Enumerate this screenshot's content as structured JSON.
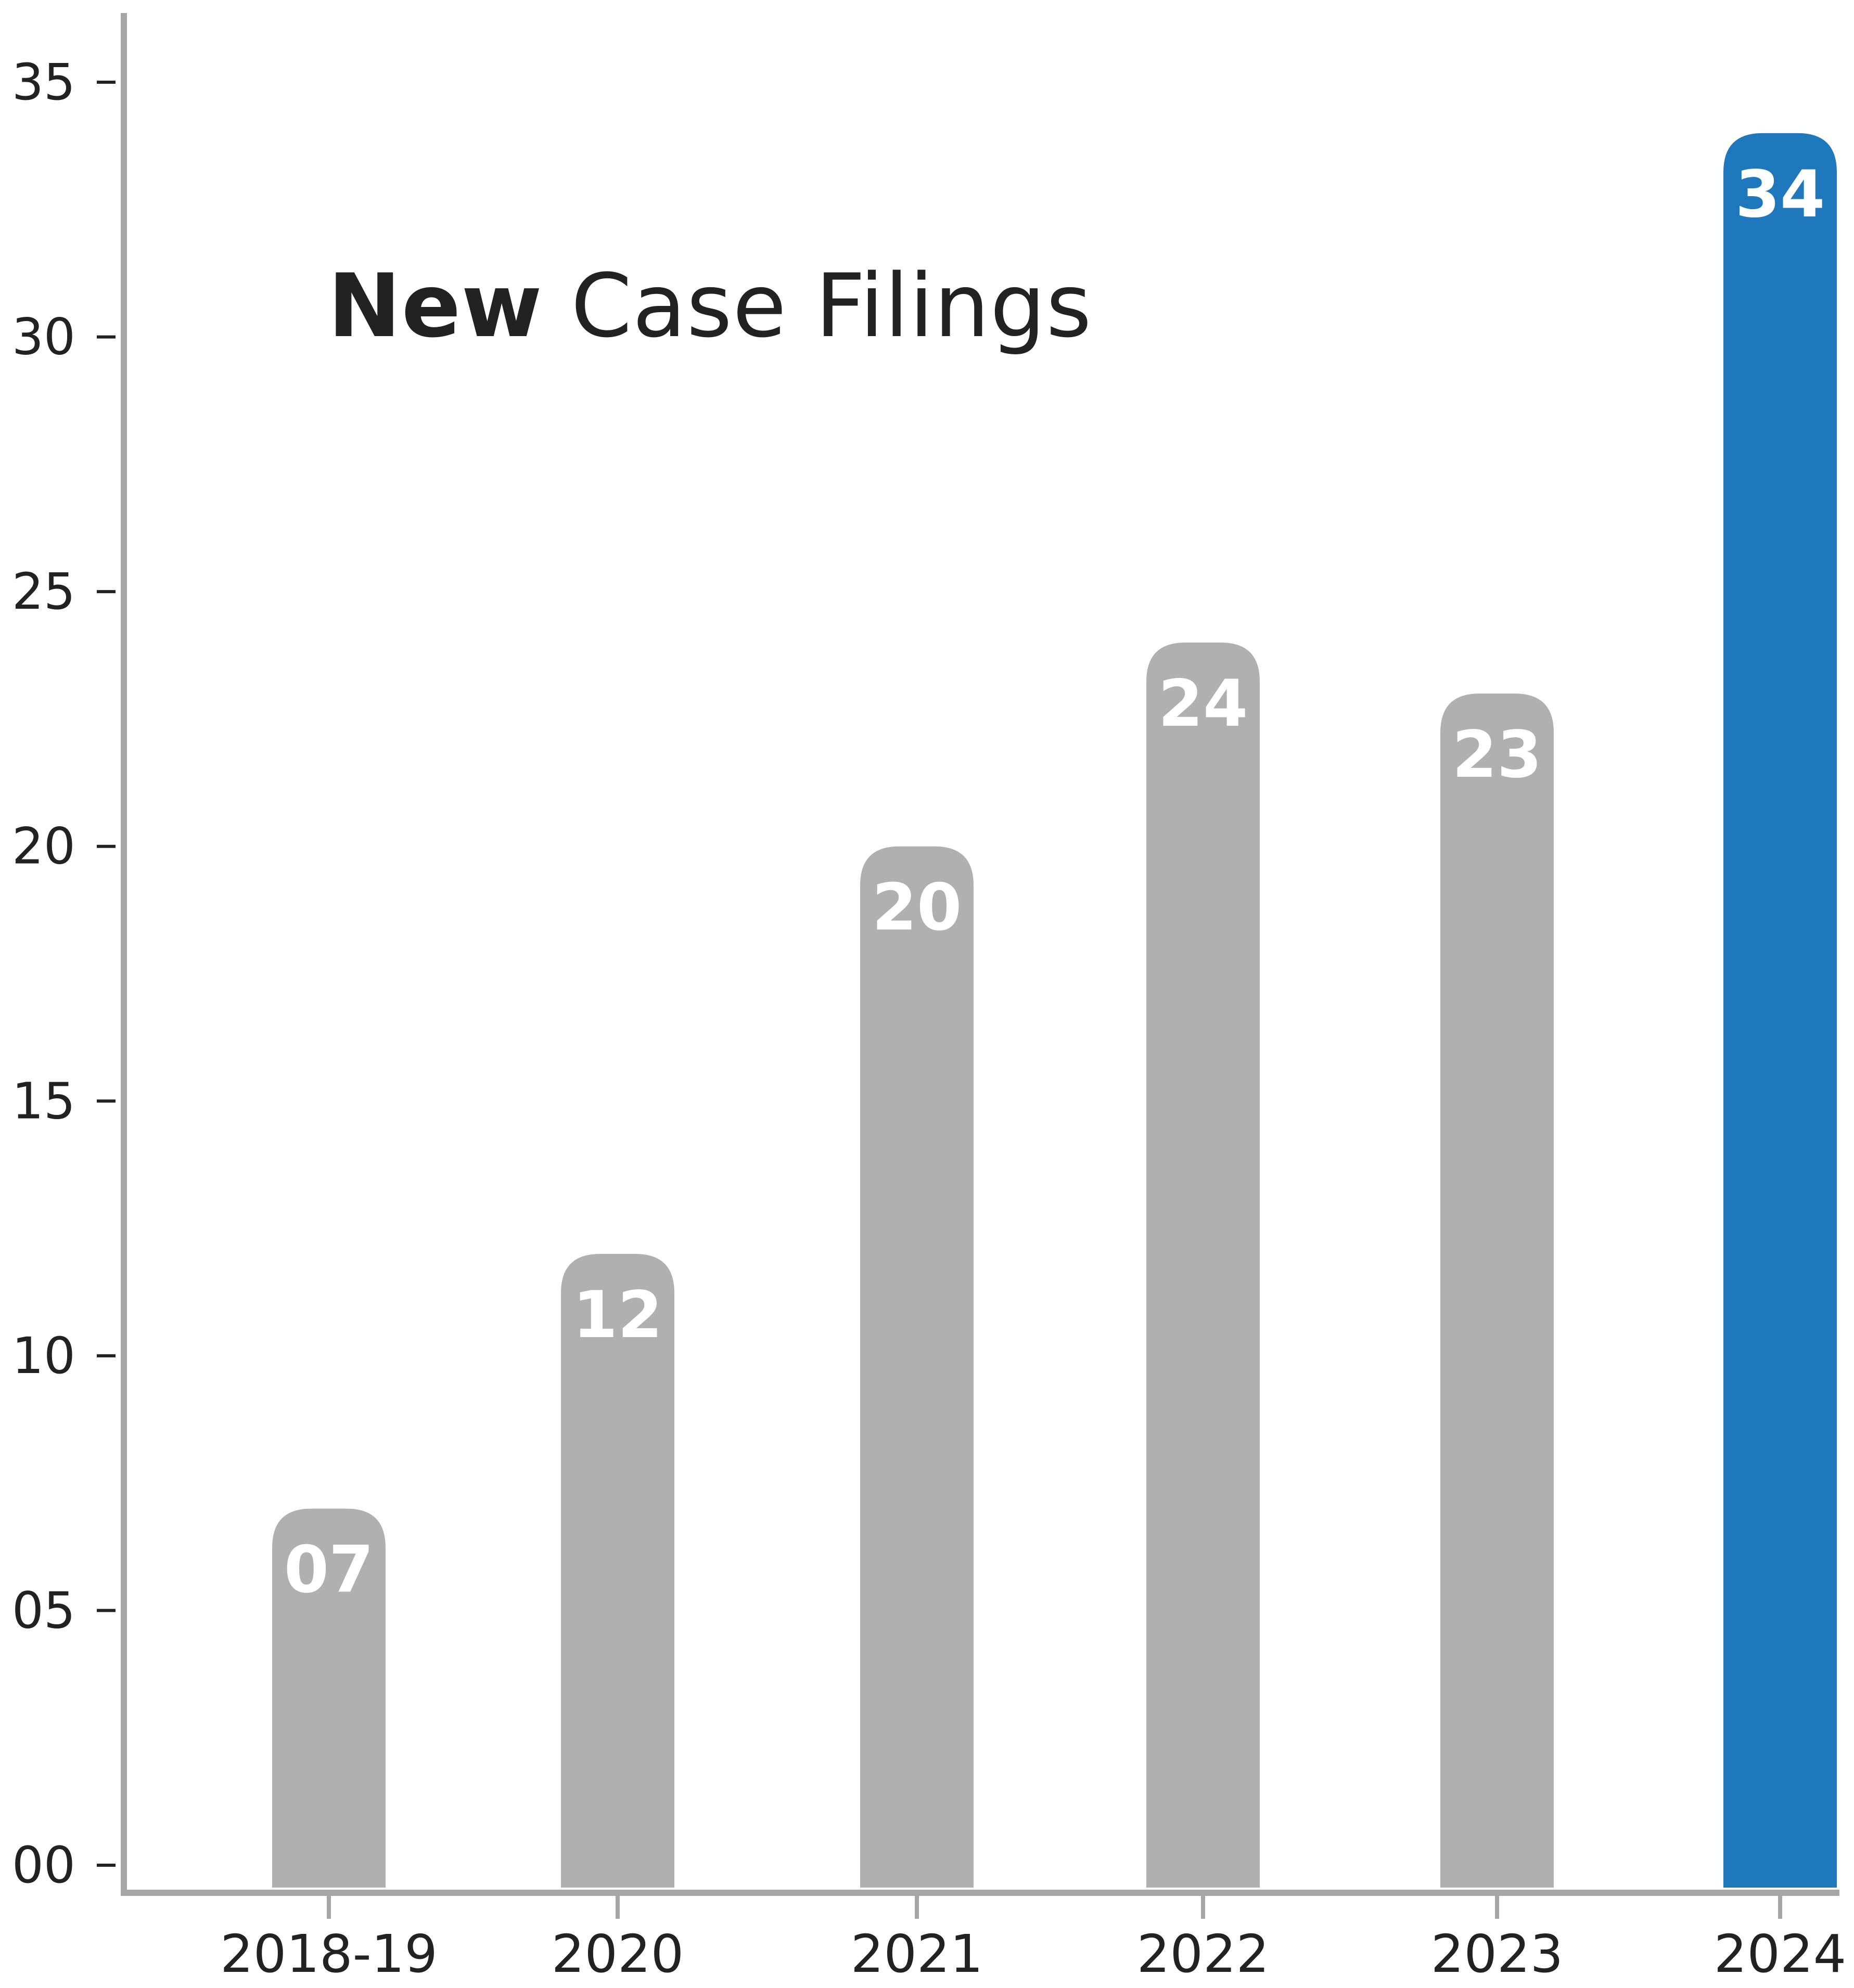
{
  "chart_data": {
    "type": "bar",
    "title_strong": "New",
    "title_rest": "Case Filings",
    "categories": [
      "2018-19",
      "2020",
      "2021",
      "2022",
      "2023",
      "2024"
    ],
    "values": [
      7,
      12,
      20,
      24,
      23,
      34
    ],
    "value_labels": [
      "07",
      "12",
      "20",
      "24",
      "23",
      "34"
    ],
    "highlight_index": 5,
    "ylim": [
      0,
      36
    ],
    "yticks": [
      0,
      5,
      10,
      15,
      20,
      25,
      30,
      35
    ],
    "ytick_labels": [
      "00",
      "05",
      "10",
      "15",
      "20",
      "25",
      "30",
      "35"
    ],
    "xlabel": "",
    "ylabel": "",
    "grid": false,
    "legend": "none",
    "colors": {
      "bar": "#b0b0b0",
      "highlight": "#1f77bc",
      "axis": "#a6a6a6",
      "tick_text": "#222222",
      "value_text": "#ffffff"
    }
  }
}
